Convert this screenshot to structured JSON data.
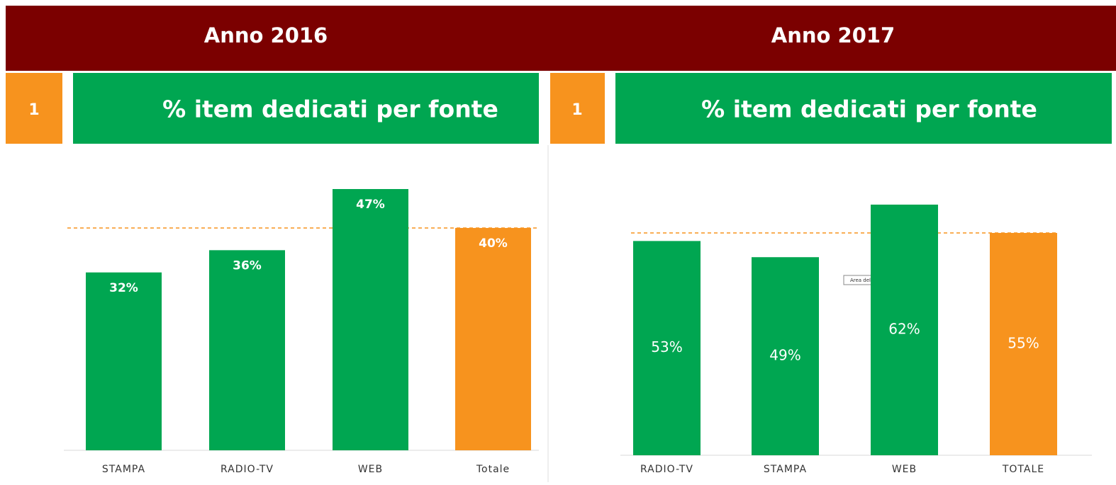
{
  "header": {
    "titles": [
      "Anno 2016",
      "Anno 2017"
    ]
  },
  "panels": [
    {
      "number": "1",
      "title": "% item dedicati per fonte"
    },
    {
      "number": "1",
      "title": "% item dedicati per fonte"
    }
  ],
  "chart_data": [
    {
      "type": "bar",
      "categories": [
        "STAMPA",
        "RADIO-TV",
        "WEB",
        "Totale"
      ],
      "values": [
        32,
        36,
        47,
        40
      ],
      "value_labels": [
        "32%",
        "36%",
        "47%",
        "40%"
      ],
      "colors": [
        "#00a651",
        "#00a651",
        "#00a651",
        "#f7931e"
      ]
    },
    {
      "type": "bar",
      "categories": [
        "RADIO-TV",
        "STAMPA",
        "WEB",
        "TOTALE"
      ],
      "values": [
        53,
        49,
        62,
        55
      ],
      "value_labels": [
        "53%",
        "49%",
        "62%",
        "55%"
      ],
      "colors": [
        "#00a651",
        "#00a651",
        "#00a651",
        "#f7931e"
      ]
    }
  ],
  "tooltip": "Area del tracciato"
}
